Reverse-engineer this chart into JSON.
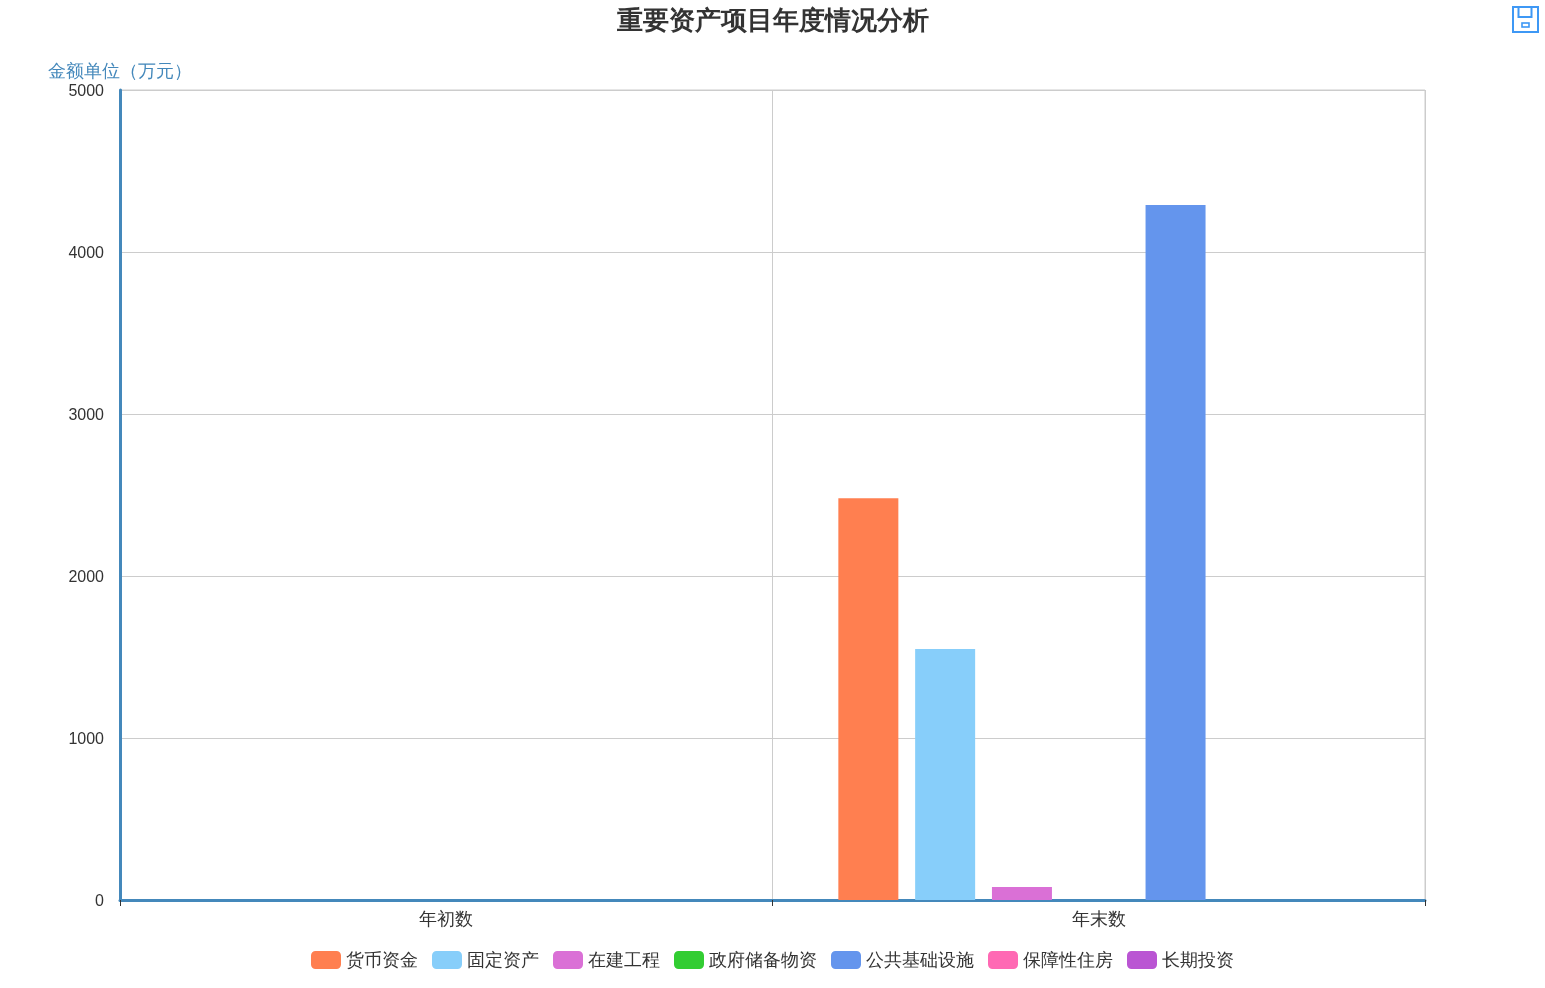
{
  "chart_data": {
    "type": "bar",
    "title": "重要资产项目年度情况分析",
    "ylabel": "金额单位（万元）",
    "categories": [
      "年初数",
      "年末数"
    ],
    "series": [
      {
        "name": "货币资金",
        "color": "#ff7f50",
        "values": [
          0,
          2480
        ]
      },
      {
        "name": "固定资产",
        "color": "#87cefa",
        "values": [
          0,
          1550
        ]
      },
      {
        "name": "在建工程",
        "color": "#da70d6",
        "values": [
          0,
          80
        ]
      },
      {
        "name": "政府储备物资",
        "color": "#32cd32",
        "values": [
          0,
          0
        ]
      },
      {
        "name": "公共基础设施",
        "color": "#6495ed",
        "values": [
          0,
          4290
        ]
      },
      {
        "name": "保障性住房",
        "color": "#ff69b4",
        "values": [
          0,
          0
        ]
      },
      {
        "name": "长期投资",
        "color": "#ba55d3",
        "values": [
          0,
          0
        ]
      }
    ],
    "ylim": [
      0,
      5000
    ],
    "yticks": [
      0,
      1000,
      2000,
      3000,
      4000,
      5000
    ],
    "grid": true,
    "legend": "bottom"
  }
}
